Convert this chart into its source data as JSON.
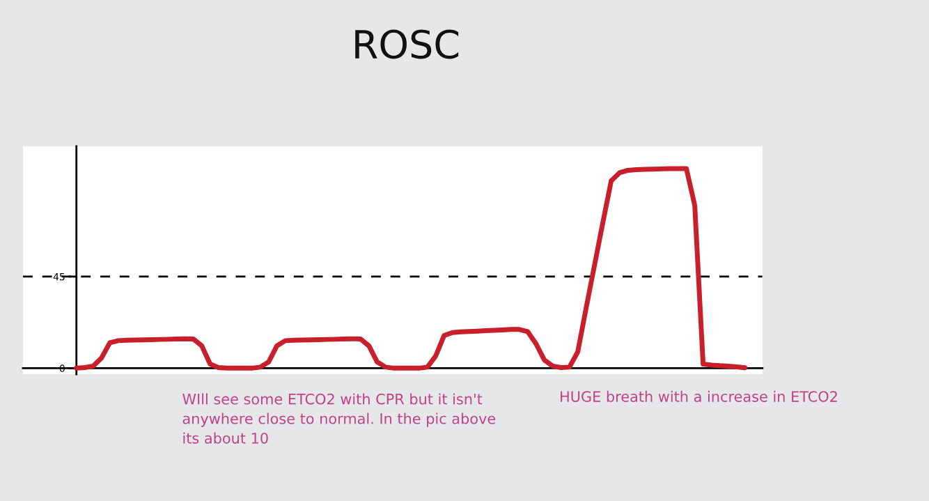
{
  "chart_data": {
    "type": "line",
    "title": "ROSC",
    "categories": [
      null,
      null,
      null,
      null,
      null,
      null,
      null,
      null,
      null,
      null,
      null,
      null,
      null,
      null,
      null,
      null,
      null,
      null,
      null,
      null,
      null,
      null,
      null,
      null,
      null,
      null,
      null,
      null,
      null,
      null,
      null,
      null,
      null,
      null,
      null,
      null,
      null,
      null,
      null,
      null,
      null,
      null,
      null,
      null,
      null,
      null,
      null,
      null,
      null,
      null,
      null,
      null,
      null,
      null,
      null,
      null,
      null,
      null,
      null,
      null,
      null,
      null,
      null,
      null,
      null,
      null,
      null,
      null,
      null,
      null,
      null,
      null,
      null,
      null,
      null,
      null,
      null,
      null,
      null,
      null,
      null
    ],
    "series": [
      {
        "color": "#c8202a",
        "values": [
          0,
          0.3,
          1,
          5,
          12.5,
          13.5,
          13.7,
          13.8,
          13.9,
          14,
          14.1,
          14.2,
          14.3,
          14.4,
          14.3,
          11,
          2,
          0.3,
          0,
          0,
          0,
          0,
          0.5,
          3,
          11,
          13.5,
          13.7,
          13.8,
          13.9,
          14,
          14.1,
          14.2,
          14.3,
          14.4,
          14.3,
          11,
          3,
          0.5,
          0,
          0,
          0,
          0,
          0.5,
          6,
          16,
          17.5,
          17.8,
          18,
          18.2,
          18.4,
          18.6,
          18.8,
          19,
          19,
          18,
          12,
          4,
          1,
          0.3,
          0.5,
          8,
          29.5,
          50.5,
          71.5,
          92,
          96,
          97.2,
          97.5,
          97.7,
          97.8,
          97.9,
          98,
          98,
          98,
          80,
          2,
          1.5,
          1.2,
          1,
          0.6,
          0.2
        ]
      }
    ],
    "ylim": [
      -3,
      109
    ],
    "yticks": [
      0,
      45
    ],
    "tick_labels": "y",
    "ref_lines": [
      {
        "axis": "y",
        "value": 45,
        "color": "#000000",
        "line_style": "dashed"
      }
    ],
    "annotations": [
      "WIll see some ETCO2 with CPR but it isn't anywhere close to normal. In the pic above its about 10",
      "HUGE breath with a increase in ETCO2"
    ]
  }
}
